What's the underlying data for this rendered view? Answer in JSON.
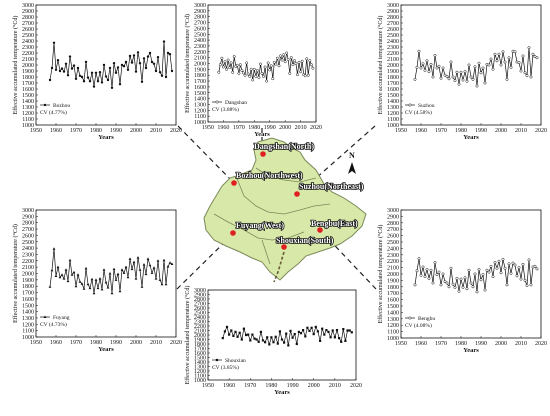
{
  "chart_data": [
    {
      "type": "line",
      "name": "Bozhou",
      "x": [
        1957,
        1958,
        1959,
        1960,
        1961,
        1962,
        1963,
        1964,
        1965,
        1966,
        1967,
        1968,
        1969,
        1970,
        1971,
        1972,
        1973,
        1974,
        1975,
        1976,
        1977,
        1978,
        1979,
        1980,
        1981,
        1982,
        1983,
        1984,
        1985,
        1986,
        1987,
        1988,
        1989,
        1990,
        1991,
        1992,
        1993,
        1994,
        1995,
        1996,
        1997,
        1998,
        1999,
        2000,
        2001,
        2002,
        2003,
        2004,
        2005,
        2006,
        2007,
        2008,
        2009,
        2010,
        2011,
        2012,
        2013,
        2014,
        2015,
        2016,
        2017,
        2018
      ],
      "values": [
        1750,
        1950,
        2370,
        1920,
        2080,
        1900,
        1940,
        1890,
        2020,
        1830,
        2140,
        1940,
        1990,
        1770,
        1950,
        1820,
        1800,
        1730,
        2050,
        1790,
        1730,
        1870,
        1640,
        1870,
        1730,
        1880,
        1710,
        2000,
        1810,
        1750,
        1950,
        1620,
        2030,
        1870,
        1960,
        1680,
        2000,
        1980,
        2050,
        1920,
        2150,
        2040,
        2160,
        1890,
        2210,
        2030,
        1720,
        2110,
        1950,
        2140,
        2200,
        2050,
        2020,
        1900,
        2130,
        1880,
        1820,
        2390,
        1800,
        2200,
        2180,
        1900
      ],
      "ylabel": "Effective accumulated temperature (°Cd)",
      "xlabel": "Years",
      "ylim": [
        1000,
        3000
      ],
      "yticks": [
        1000,
        1100,
        1200,
        1300,
        1400,
        1500,
        1600,
        1700,
        1800,
        1900,
        2000,
        2100,
        2200,
        2300,
        2400,
        2500,
        2600,
        2700,
        2800,
        2900,
        3000
      ],
      "xlim": [
        1950,
        2020
      ],
      "xticks": [
        1950,
        1960,
        1970,
        1980,
        1990,
        2000,
        2010,
        2020
      ],
      "legend": "Bozhou",
      "cv": "CV (4.77%)",
      "marker": "circle-filled"
    },
    {
      "type": "line",
      "name": "Dangshan",
      "x": [
        1957,
        1958,
        1959,
        1960,
        1961,
        1962,
        1963,
        1964,
        1965,
        1966,
        1967,
        1968,
        1969,
        1970,
        1971,
        1972,
        1973,
        1974,
        1975,
        1976,
        1977,
        1978,
        1979,
        1980,
        1981,
        1982,
        1983,
        1984,
        1985,
        1986,
        1987,
        1988,
        1989,
        1990,
        1991,
        1992,
        1993,
        1994,
        1995,
        1996,
        1997,
        1998,
        1999,
        2000,
        2001,
        2002,
        2003,
        2004,
        2005,
        2006,
        2007,
        2008,
        2009,
        2010,
        2011,
        2012,
        2013,
        2014,
        2015,
        2016,
        2017,
        2018
      ],
      "values": [
        1850,
        1980,
        2090,
        1940,
        2030,
        1900,
        2060,
        1930,
        2010,
        1850,
        2120,
        1950,
        1970,
        1830,
        1980,
        1880,
        1840,
        1800,
        2010,
        1820,
        1780,
        1900,
        1720,
        1900,
        1780,
        1880,
        1760,
        1990,
        1830,
        1780,
        1940,
        1700,
        2010,
        1890,
        1960,
        1740,
        2020,
        1990,
        2090,
        1960,
        2130,
        2060,
        2150,
        2030,
        2180,
        2070,
        1830,
        2100,
        1980,
        2050,
        2000,
        1810,
        2020,
        1860,
        2040,
        1810,
        1790,
        2080,
        1800,
        2050,
        1980,
        1920
      ],
      "ylabel": "Effective accumulated temperature (°Cd)",
      "xlabel": "Years",
      "ylim": [
        1000,
        3000
      ],
      "yticks": [
        1000,
        1100,
        1200,
        1300,
        1400,
        1500,
        1600,
        1700,
        1800,
        1900,
        2000,
        2100,
        2200,
        2300,
        2400,
        2500,
        2600,
        2700,
        2800,
        2900,
        3000
      ],
      "xlim": [
        1950,
        2020
      ],
      "xticks": [
        1950,
        1960,
        1970,
        1980,
        1990,
        2000,
        2010,
        2020
      ],
      "legend": "Dangshan",
      "cv": "CV (3.88%)",
      "marker": "circle-open"
    },
    {
      "type": "line",
      "name": "Suzhou",
      "x": [
        1957,
        1958,
        1959,
        1960,
        1961,
        1962,
        1963,
        1964,
        1965,
        1966,
        1967,
        1968,
        1969,
        1970,
        1971,
        1972,
        1973,
        1974,
        1975,
        1976,
        1977,
        1978,
        1979,
        1980,
        1981,
        1982,
        1983,
        1984,
        1985,
        1986,
        1987,
        1988,
        1989,
        1990,
        1991,
        1992,
        1993,
        1994,
        1995,
        1996,
        1997,
        1998,
        1999,
        2000,
        2001,
        2002,
        2003,
        2004,
        2005,
        2006,
        2007,
        2008,
        2009,
        2010,
        2011,
        2012,
        2013,
        2014,
        2015,
        2016,
        2017,
        2018
      ],
      "values": [
        1760,
        1960,
        2230,
        1950,
        2020,
        1910,
        2070,
        1890,
        2010,
        1800,
        2160,
        1950,
        1980,
        1780,
        1950,
        1830,
        1810,
        1770,
        2050,
        1800,
        1740,
        1880,
        1680,
        1880,
        1750,
        1890,
        1730,
        2000,
        1800,
        1760,
        1970,
        1650,
        2030,
        1870,
        1950,
        1700,
        2010,
        2000,
        2100,
        1930,
        2180,
        2070,
        2180,
        2000,
        2220,
        2050,
        1760,
        2120,
        1960,
        2230,
        2220,
        2050,
        2040,
        1900,
        2150,
        1870,
        1820,
        2290,
        1800,
        2180,
        2140,
        2120
      ],
      "ylabel": "Effective accumulated temperature (°Cd)",
      "xlabel": "Years",
      "ylim": [
        1000,
        3000
      ],
      "yticks": [
        1000,
        1100,
        1200,
        1300,
        1400,
        1500,
        1600,
        1700,
        1800,
        1900,
        2000,
        2100,
        2200,
        2300,
        2400,
        2500,
        2600,
        2700,
        2800,
        2900,
        3000
      ],
      "xlim": [
        1950,
        2020
      ],
      "xticks": [
        1950,
        1960,
        1970,
        1980,
        1990,
        2000,
        2010,
        2020
      ],
      "legend": "Suzhou",
      "cv": "CV (4.58%)",
      "marker": "circle-open"
    },
    {
      "type": "line",
      "name": "Fuyang",
      "x": [
        1957,
        1958,
        1959,
        1960,
        1961,
        1962,
        1963,
        1964,
        1965,
        1966,
        1967,
        1968,
        1969,
        1970,
        1971,
        1972,
        1973,
        1974,
        1975,
        1976,
        1977,
        1978,
        1979,
        1980,
        1981,
        1982,
        1983,
        1984,
        1985,
        1986,
        1987,
        1988,
        1989,
        1990,
        1991,
        1992,
        1993,
        1994,
        1995,
        1996,
        1997,
        1998,
        1999,
        2000,
        2001,
        2002,
        2003,
        2004,
        2005,
        2006,
        2007,
        2008,
        2009,
        2010,
        2011,
        2012,
        2013,
        2014,
        2015,
        2016,
        2017,
        2018
      ],
      "values": [
        1790,
        2050,
        2390,
        1960,
        2100,
        1940,
        1980,
        1920,
        2060,
        1880,
        2210,
        1980,
        2020,
        1800,
        1980,
        1870,
        1840,
        1760,
        2080,
        1830,
        1770,
        1910,
        1690,
        1900,
        1770,
        1920,
        1750,
        2060,
        1860,
        1780,
        2000,
        1690,
        2070,
        1900,
        1990,
        1720,
        2060,
        2010,
        2100,
        1940,
        2230,
        2070,
        2180,
        1920,
        2250,
        2060,
        1790,
        2140,
        1990,
        2230,
        2130,
        2010,
        2090,
        1920,
        2200,
        1900,
        1830,
        2210,
        1830,
        2110,
        2170,
        2150
      ],
      "ylabel": "Effective accumulated temperature (°Cd)",
      "xlabel": "Years",
      "ylim": [
        1000,
        3000
      ],
      "yticks": [
        1000,
        1100,
        1200,
        1300,
        1400,
        1500,
        1600,
        1700,
        1800,
        1900,
        2000,
        2100,
        2200,
        2300,
        2400,
        2500,
        2600,
        2700,
        2800,
        2900,
        3000
      ],
      "xlim": [
        1950,
        2020
      ],
      "xticks": [
        1950,
        1960,
        1970,
        1980,
        1990,
        2000,
        2010,
        2020
      ],
      "legend": "Fuyang",
      "cv": "CV (4.73%)",
      "marker": "triangle-filled"
    },
    {
      "type": "line",
      "name": "Shouxian",
      "x": [
        1957,
        1958,
        1959,
        1960,
        1961,
        1962,
        1963,
        1964,
        1965,
        1966,
        1967,
        1968,
        1969,
        1970,
        1971,
        1972,
        1973,
        1974,
        1975,
        1976,
        1977,
        1978,
        1979,
        1980,
        1981,
        1982,
        1983,
        1984,
        1985,
        1986,
        1987,
        1988,
        1989,
        1990,
        1991,
        1992,
        1993,
        1994,
        1995,
        1996,
        1997,
        1998,
        1999,
        2000,
        2001,
        2002,
        2003,
        2004,
        2005,
        2006,
        2007,
        2008,
        2009,
        2010,
        2011,
        2012,
        2013,
        2014,
        2015,
        2016,
        2017,
        2018
      ],
      "values": [
        1930,
        2080,
        2180,
        2010,
        2100,
        1980,
        2070,
        1960,
        2050,
        1900,
        2140,
        2000,
        2010,
        1880,
        2010,
        1920,
        1900,
        1850,
        2070,
        1880,
        1840,
        1950,
        1790,
        1950,
        1840,
        1960,
        1810,
        2080,
        1900,
        1830,
        2030,
        1770,
        2090,
        1940,
        2020,
        1800,
        2070,
        2040,
        2110,
        1970,
        2160,
        2090,
        2160,
        2020,
        2180,
        2080,
        1870,
        2140,
        2010,
        2110,
        2070,
        1950,
        2100,
        1950,
        2110,
        1930,
        1850,
        2130,
        1870,
        2100,
        2100,
        2060
      ],
      "ylabel": "Effective accumulated temperature (°Cd)",
      "xlabel": "Years",
      "ylim": [
        1000,
        3000
      ],
      "yticks": [
        1000,
        1100,
        1200,
        1300,
        1400,
        1500,
        1600,
        1700,
        1800,
        1900,
        2000,
        2100,
        2200,
        2300,
        2400,
        2500,
        2600,
        2700,
        2800,
        2900,
        3000
      ],
      "xlim": [
        1950,
        2020
      ],
      "xticks": [
        1950,
        1960,
        1970,
        1980,
        1990,
        2000,
        2010,
        2020
      ],
      "legend": "Shouxian",
      "cv": "CV (3.85%)",
      "marker": "square-filled"
    },
    {
      "type": "line",
      "name": "Bengbu",
      "x": [
        1957,
        1958,
        1959,
        1960,
        1961,
        1962,
        1963,
        1964,
        1965,
        1966,
        1967,
        1968,
        1969,
        1970,
        1971,
        1972,
        1973,
        1974,
        1975,
        1976,
        1977,
        1978,
        1979,
        1980,
        1981,
        1982,
        1983,
        1984,
        1985,
        1986,
        1987,
        1988,
        1989,
        1990,
        1991,
        1992,
        1993,
        1994,
        1995,
        1996,
        1997,
        1998,
        1999,
        2000,
        2001,
        2002,
        2003,
        2004,
        2005,
        2006,
        2007,
        2008,
        2009,
        2010,
        2011,
        2012,
        2013,
        2014,
        2015,
        2016,
        2017,
        2018
      ],
      "values": [
        1830,
        2050,
        2240,
        1980,
        2110,
        1960,
        2070,
        1930,
        2060,
        1860,
        2180,
        1990,
        2030,
        1830,
        2000,
        1880,
        1860,
        1800,
        2090,
        1840,
        1790,
        1930,
        1730,
        1920,
        1790,
        1940,
        1770,
        2060,
        1860,
        1800,
        2000,
        1720,
        2070,
        1910,
        1990,
        1750,
        2060,
        2030,
        2120,
        1960,
        2180,
        2090,
        2200,
        2020,
        2230,
        2090,
        1830,
        2160,
        2010,
        2170,
        2140,
        1970,
        2100,
        1920,
        2150,
        1900,
        1820,
        2220,
        1830,
        2110,
        2120,
        2080
      ],
      "ylabel": "Effective accumulated temperature (°Cd)",
      "xlabel": "Years",
      "ylim": [
        1000,
        3000
      ],
      "yticks": [
        1000,
        1100,
        1200,
        1300,
        1400,
        1500,
        1600,
        1700,
        1800,
        1900,
        2000,
        2100,
        2200,
        2300,
        2400,
        2500,
        2600,
        2700,
        2800,
        2900,
        3000
      ],
      "xlim": [
        1950,
        2020
      ],
      "xticks": [
        1950,
        1960,
        1970,
        1980,
        1990,
        2000,
        2010,
        2020
      ],
      "legend": "Bengbu",
      "cv": "CV (4.08%)",
      "marker": "circle-open"
    }
  ],
  "map": {
    "north_label": "N",
    "colors": {
      "fill": "#d8e8a8",
      "border": "#7a8a5a",
      "station": "#e02020",
      "river": "#6a5a3a"
    },
    "stations": [
      {
        "label": "Dangshan(North)"
      },
      {
        "label": "Bozhou(Northwest)"
      },
      {
        "label": "Suzhou(Northeast)"
      },
      {
        "label": "Fuyang(West)"
      },
      {
        "label": "Bengbu(East)"
      },
      {
        "label": "Shouxian(South)"
      }
    ]
  }
}
